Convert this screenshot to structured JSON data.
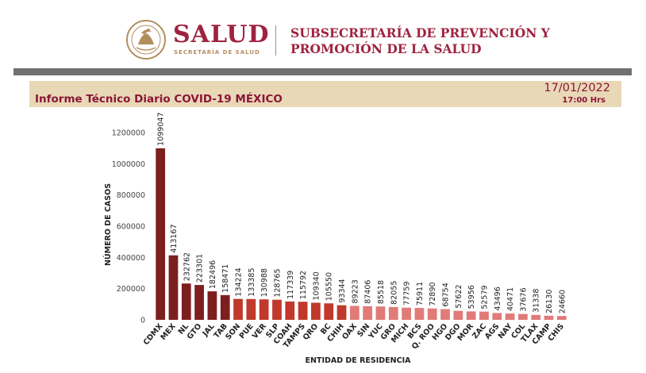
{
  "header": {
    "org_name": "SALUD",
    "org_subtitle": "SECRETARÍA DE SALUD",
    "subsecretaria_line1": "SUBSECRETARÍA DE PREVENCIÓN Y",
    "subsecretaria_line2": "PROMOCIÓN DE LA SALUD",
    "seal_icon": "mexican-national-seal-icon"
  },
  "banner": {
    "title": "Informe Técnico Diario COVID-19 MÉXICO",
    "date": "17/01/2022",
    "time": "17:00 Hrs"
  },
  "colors": {
    "brand": "#9f2241",
    "gold": "#b38e5d",
    "banner_bg": "#e9d8b6",
    "grey_bar": "#6f7271",
    "bar_dark": "#7d1f1f",
    "bar_mid": "#c0392b",
    "bar_light": "#e07b78"
  },
  "chart_data": {
    "type": "bar",
    "xlabel": "ENTIDAD DE RESIDENCIA",
    "ylabel": "NÚMERO DE CASOS",
    "ylim": [
      0,
      1200000
    ],
    "yticks": [
      0,
      200000,
      400000,
      600000,
      800000,
      1000000,
      1200000
    ],
    "categories": [
      "CDMX",
      "MEX",
      "NL",
      "GTO",
      "JAL",
      "TAB",
      "SON",
      "PUE",
      "VER",
      "SLP",
      "COAH",
      "TAMPS",
      "QRO",
      "BC",
      "CHIH",
      "OAX",
      "SIN",
      "YUC",
      "GRO",
      "MICH",
      "BCS",
      "Q. ROO",
      "HGO",
      "DGO",
      "MOR",
      "ZAC",
      "AGS",
      "NAY",
      "COL",
      "TLAX",
      "CAMP",
      "CHIS"
    ],
    "values": [
      1099047,
      413167,
      232762,
      223301,
      182496,
      158471,
      134224,
      133385,
      130988,
      128765,
      117339,
      115792,
      109340,
      105550,
      93344,
      89223,
      87406,
      85518,
      82055,
      77759,
      75911,
      72890,
      68754,
      57622,
      53956,
      52579,
      43496,
      40471,
      37676,
      31338,
      26130,
      24660
    ],
    "grid": false,
    "legend": "none"
  }
}
